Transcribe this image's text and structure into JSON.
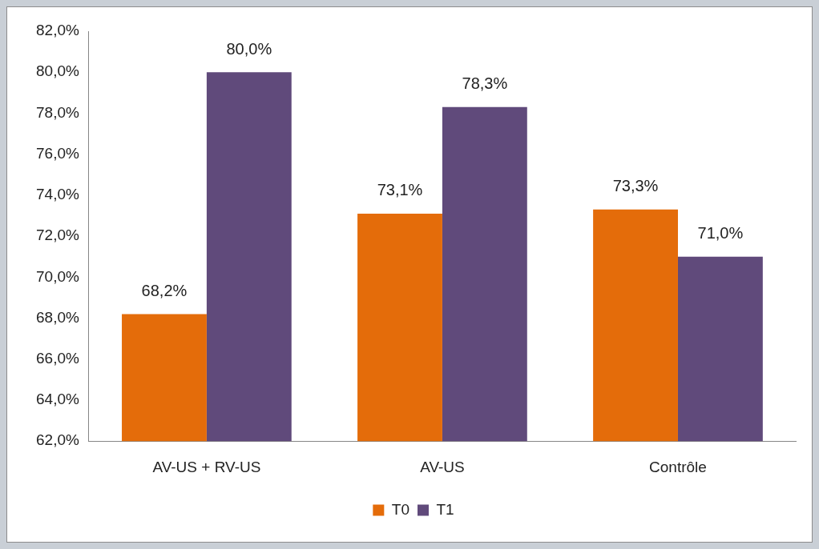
{
  "chart_data": {
    "type": "bar",
    "categories": [
      "AV-US + RV-US",
      "AV-US",
      "Contrôle"
    ],
    "series": [
      {
        "name": "T0",
        "color": "#e46c0a",
        "values": [
          68.2,
          73.1,
          73.3
        ],
        "value_labels": [
          "68,2%",
          "73,1%",
          "73,3%"
        ]
      },
      {
        "name": "T1",
        "color": "#604a7b",
        "values": [
          80.0,
          78.3,
          71.0
        ],
        "value_labels": [
          "80,0%",
          "78,3%",
          "71,0%"
        ]
      }
    ],
    "ylim": [
      62,
      82
    ],
    "yticks": [
      {
        "value": 62,
        "label": "62,0%"
      },
      {
        "value": 64,
        "label": "64,0%"
      },
      {
        "value": 66,
        "label": "66,0%"
      },
      {
        "value": 68,
        "label": "68,0%"
      },
      {
        "value": 70,
        "label": "70,0%"
      },
      {
        "value": 72,
        "label": "72,0%"
      },
      {
        "value": 74,
        "label": "74,0%"
      },
      {
        "value": 76,
        "label": "76,0%"
      },
      {
        "value": 78,
        "label": "78,0%"
      },
      {
        "value": 80,
        "label": "80,0%"
      },
      {
        "value": 82,
        "label": "82,0%"
      }
    ],
    "grid": false,
    "legend": "bottom"
  }
}
